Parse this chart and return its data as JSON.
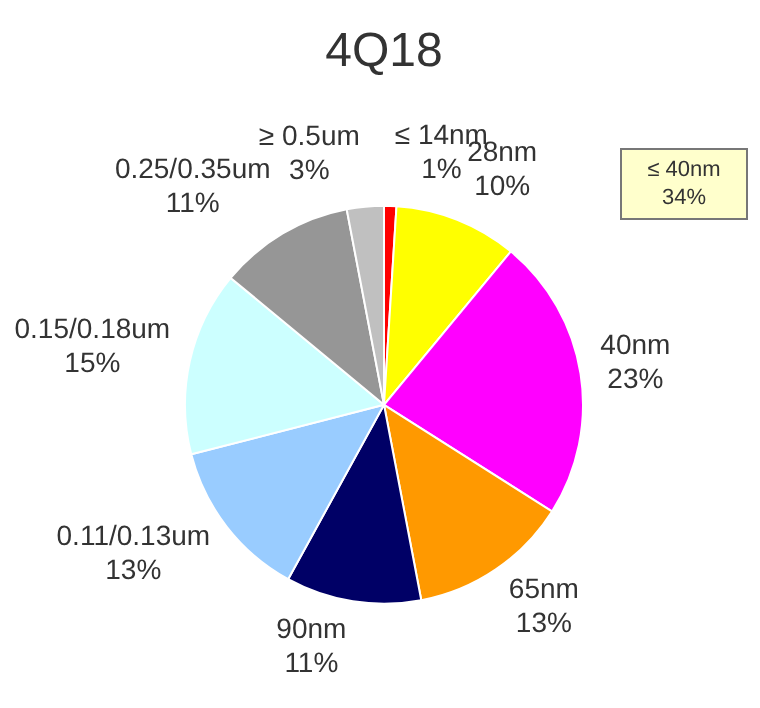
{
  "chart_data": {
    "type": "pie",
    "title": "4Q18",
    "categories": [
      "≤ 14nm",
      "28nm",
      "40nm",
      "65nm",
      "90nm",
      "0.11/0.13um",
      "0.15/0.18um",
      "0.25/0.35um",
      "≥ 0.5um"
    ],
    "values": [
      1,
      10,
      23,
      13,
      11,
      13,
      15,
      11,
      3
    ],
    "value_labels": [
      "1%",
      "10%",
      "23%",
      "13%",
      "11%",
      "13%",
      "15%",
      "11%",
      "3%"
    ],
    "colors": [
      "#ff0000",
      "#ffff00",
      "#ff00ff",
      "#ff9900",
      "#000066",
      "#99ccff",
      "#ccffff",
      "#969696",
      "#c0c0c0"
    ],
    "annotations": [
      "≤ 40nm 34%"
    ]
  }
}
